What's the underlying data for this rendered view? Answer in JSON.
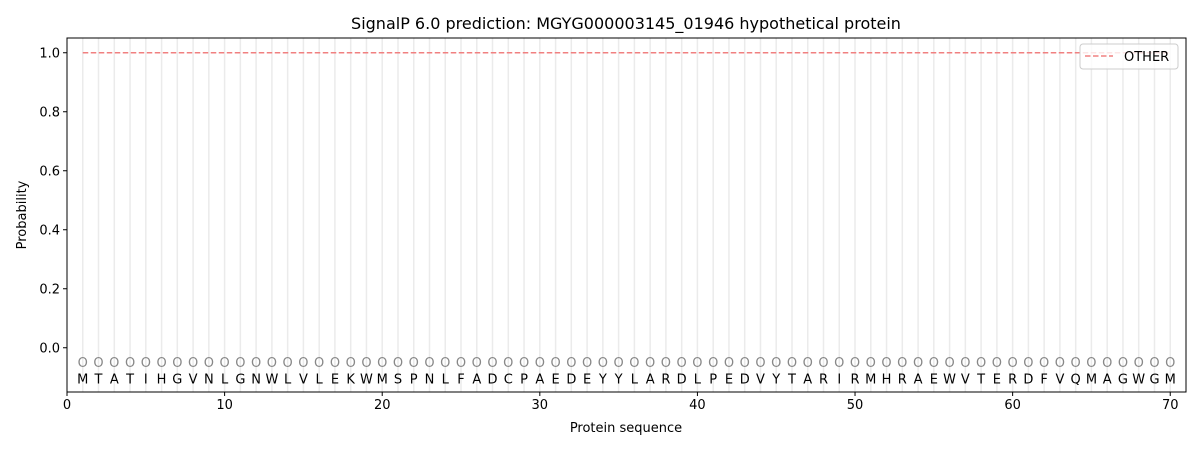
{
  "chart_data": {
    "type": "line",
    "title": "SignalP 6.0 prediction: MGYG000003145_01946 hypothetical protein",
    "xlabel": "Protein sequence",
    "ylabel": "Probability",
    "xlim": [
      0,
      71
    ],
    "ylim": [
      -0.15,
      1.05
    ],
    "xticks": [
      0,
      10,
      20,
      30,
      40,
      50,
      60,
      70
    ],
    "yticks": [
      0.0,
      0.2,
      0.4,
      0.6,
      0.8,
      1.0
    ],
    "ytick_labels": [
      "0.0",
      "0.2",
      "0.4",
      "0.6",
      "0.8",
      "1.0"
    ],
    "grid": "vertical lines at each residue",
    "legend": {
      "placement": "top-right",
      "entries": [
        "OTHER"
      ]
    },
    "series": [
      {
        "name": "OTHER",
        "color": "#f08080",
        "style": "dashed",
        "x_start": 1,
        "x_end": 70,
        "value": 1.0
      }
    ],
    "sequence": [
      "M",
      "T",
      "A",
      "T",
      "I",
      "H",
      "G",
      "V",
      "N",
      "L",
      "G",
      "N",
      "W",
      "L",
      "V",
      "L",
      "E",
      "K",
      "W",
      "M",
      "S",
      "P",
      "N",
      "L",
      "F",
      "A",
      "D",
      "C",
      "P",
      "A",
      "E",
      "D",
      "E",
      "Y",
      "Y",
      "L",
      "A",
      "R",
      "D",
      "L",
      "P",
      "E",
      "D",
      "V",
      "Y",
      "T",
      "A",
      "R",
      "I",
      "R",
      "M",
      "H",
      "R",
      "A",
      "E",
      "W",
      "V",
      "T",
      "E",
      "R",
      "D",
      "F",
      "V",
      "Q",
      "M",
      "A",
      "G",
      "W",
      "G",
      "M"
    ],
    "predicted_labels": "OOOOOOOOOOOOOOOOOOOOOOOOOOOOOOOOOOOOOOOOOOOOOOOOOOOOOOOOOOOOOOOOOOOOOO"
  }
}
